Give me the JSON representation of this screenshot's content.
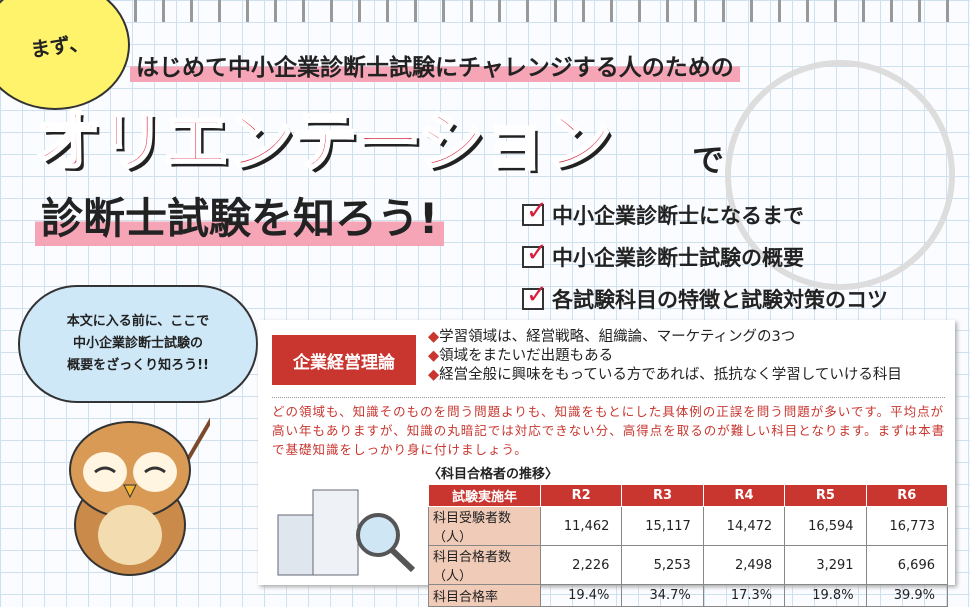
{
  "header": {
    "intro": "まず、",
    "subtitle": "はじめて中小企業診断士試験にチャレンジする人のための",
    "main_title": "オリエンテーション",
    "particle": "で",
    "tagline": "診断士試験を知ろう!"
  },
  "checklist": [
    "中小企業診断士になるまで",
    "中小企業診断士試験の概要",
    "各試験科目の特徴と試験対策のコツ"
  ],
  "bubble": {
    "lines": [
      "本文に入る前に、ここで",
      "中小企業診断士試験の",
      "概要をざっくり知ろう!!"
    ]
  },
  "card": {
    "subject": "企業経営理論",
    "bullets": [
      "学習領域は、経営戦略、組織論、マーケティングの3つ",
      "領域をまたいだ出題もある",
      "経営全般に興味をもっている方であれば、抵抗なく学習していける科目"
    ],
    "memo": "どの領域も、知識そのものを問う問題よりも、知識をもとにした具体例の正誤を問う問題が多いです。平均点が高い年もありますが、知識の丸暗記では対応できない分、高得点を取るのが難しい科目となります。まずは本書で基礎知識をしっかり身に付けましょう。",
    "table_title": "〈科目合格者の推移〉",
    "table": {
      "headers": [
        "試験実施年",
        "R2",
        "R3",
        "R4",
        "R5",
        "R6"
      ],
      "rows": [
        [
          "科目受験者数（人）",
          "11,462",
          "15,117",
          "14,472",
          "16,594",
          "16,773"
        ],
        [
          "科目合格者数（人）",
          "2,226",
          "5,253",
          "2,498",
          "3,291",
          "6,696"
        ],
        [
          "科目合格率",
          "19.4%",
          "34.7%",
          "17.3%",
          "19.8%",
          "39.9%"
        ]
      ]
    }
  },
  "colors": {
    "accent": "#c8362f",
    "title_red": "#d81e3e",
    "highlight": "#f6a5b6"
  }
}
